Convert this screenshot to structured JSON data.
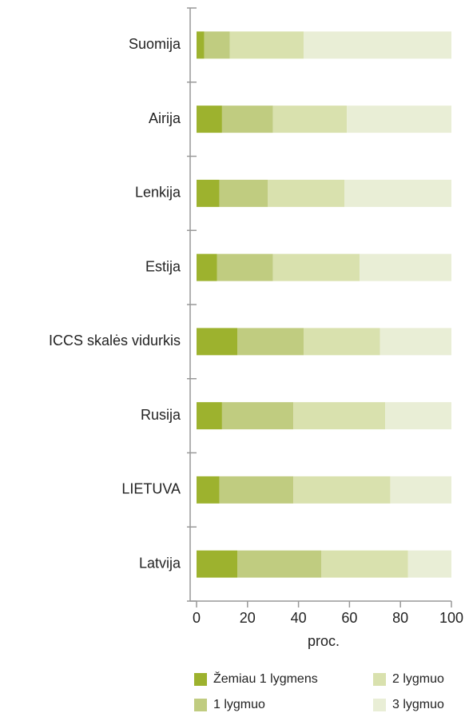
{
  "chart_data": {
    "type": "stacked_barh",
    "categories": [
      "Suomija",
      "Airija",
      "Lenkija",
      "Estija",
      "ICCS skalės vidurkis",
      "Rusija",
      "LIETUVA",
      "Latvija"
    ],
    "series": [
      {
        "name": "Žemiau 1 lygmens",
        "color": "#9db22e",
        "values": [
          3,
          10,
          9,
          8,
          16,
          10,
          9,
          16
        ]
      },
      {
        "name": "1 lygmuo",
        "color": "#c0cc80",
        "values": [
          10,
          20,
          19,
          22,
          26,
          28,
          29,
          33
        ]
      },
      {
        "name": "2 lygmuo",
        "color": "#d9e1ae",
        "values": [
          29,
          29,
          30,
          34,
          30,
          36,
          38,
          34
        ]
      },
      {
        "name": "3 lygmuo",
        "color": "#e9eed6",
        "values": [
          58,
          41,
          42,
          36,
          28,
          26,
          24,
          17
        ]
      }
    ],
    "xlabel": "proc.",
    "xlim": [
      0,
      100
    ],
    "xticks": [
      0,
      20,
      40,
      60,
      80,
      100
    ],
    "grid": false
  }
}
